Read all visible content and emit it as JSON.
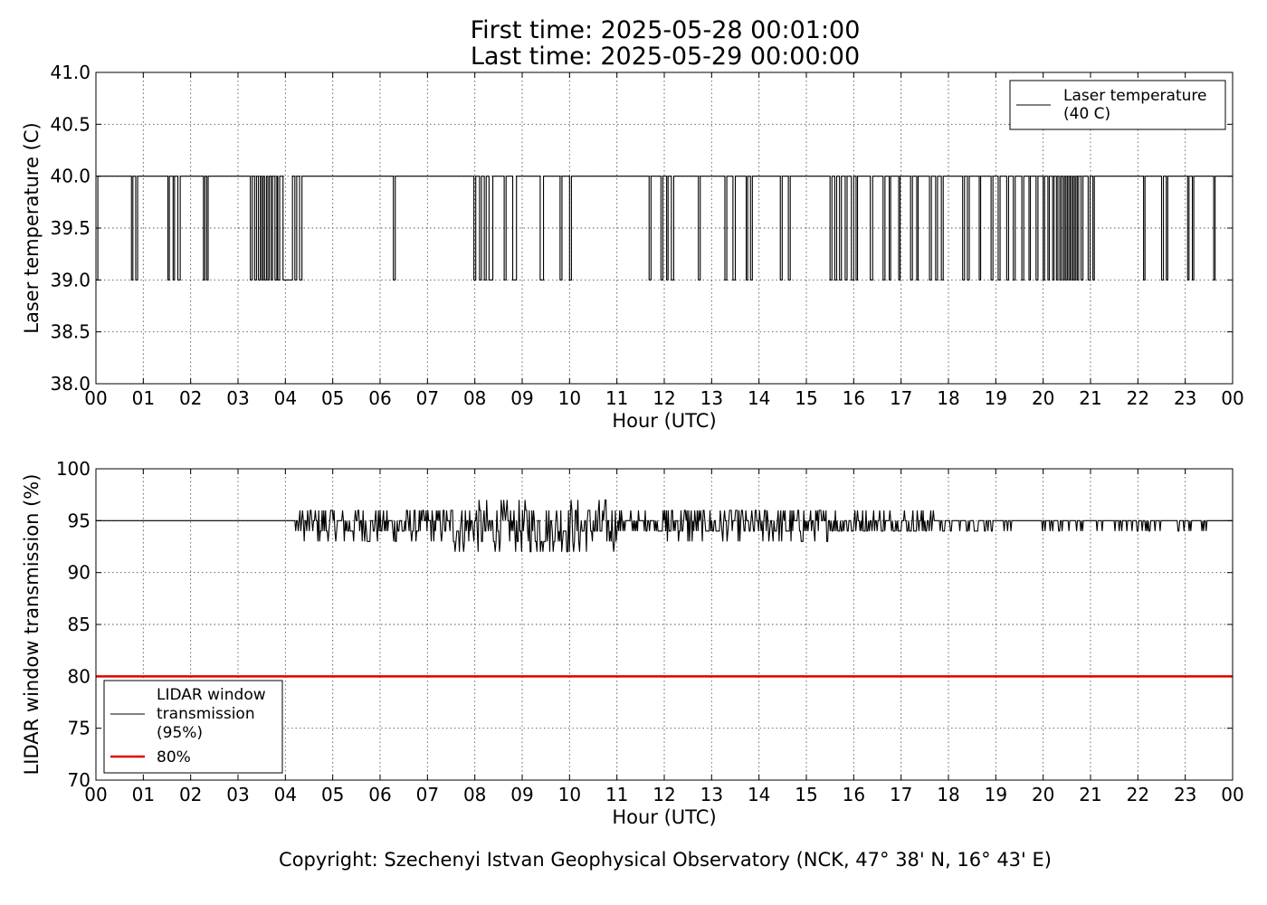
{
  "title": {
    "line1": "First time: 2025-05-28 00:01:00",
    "line2": "Last time: 2025-05-29 00:00:00"
  },
  "copyright": "Copyright: Szechenyi Istvan Geophysical Observatory (NCK, 47° 38' N, 16° 43' E)",
  "colors": {
    "series": "#000000",
    "threshold": "#e00000",
    "grid": "#555555"
  },
  "chart_data": [
    {
      "type": "line",
      "xlabel": "Hour (UTC)",
      "ylabel": "Laser temperature (C)",
      "xlim": [
        0,
        24
      ],
      "ylim": [
        38.0,
        41.0
      ],
      "xtick_labels": [
        "00",
        "01",
        "02",
        "03",
        "04",
        "05",
        "06",
        "07",
        "08",
        "09",
        "10",
        "11",
        "12",
        "13",
        "14",
        "15",
        "16",
        "17",
        "18",
        "19",
        "20",
        "21",
        "22",
        "23",
        "00"
      ],
      "ytick_labels": [
        "38.0",
        "38.5",
        "39.0",
        "39.5",
        "40.0",
        "40.5",
        "41.0"
      ],
      "grid": true,
      "legend_position": "top-right",
      "baseline": 40.0,
      "dip_value": 39.0,
      "dips_hours": [
        [
          0.0,
          0.04
        ],
        [
          0.75,
          0.78
        ],
        [
          0.84,
          0.88
        ],
        [
          1.52,
          1.55
        ],
        [
          1.63,
          1.66
        ],
        [
          1.73,
          1.78
        ],
        [
          2.27,
          2.3
        ],
        [
          2.34,
          2.37
        ],
        [
          3.26,
          3.3
        ],
        [
          3.35,
          3.39
        ],
        [
          3.43,
          3.47
        ],
        [
          3.5,
          3.53
        ],
        [
          3.56,
          3.6
        ],
        [
          3.63,
          3.66
        ],
        [
          3.7,
          3.73
        ],
        [
          3.78,
          3.82
        ],
        [
          3.84,
          3.88
        ],
        [
          3.95,
          4.15
        ],
        [
          4.2,
          4.24
        ],
        [
          4.3,
          4.35
        ],
        [
          6.28,
          6.32
        ],
        [
          7.98,
          8.02
        ],
        [
          8.1,
          8.14
        ],
        [
          8.2,
          8.24
        ],
        [
          8.3,
          8.38
        ],
        [
          8.62,
          8.66
        ],
        [
          8.8,
          8.88
        ],
        [
          9.38,
          9.45
        ],
        [
          9.8,
          9.84
        ],
        [
          10.0,
          10.04
        ],
        [
          11.68,
          11.72
        ],
        [
          11.93,
          11.97
        ],
        [
          12.05,
          12.08
        ],
        [
          12.15,
          12.2
        ],
        [
          12.72,
          12.76
        ],
        [
          13.28,
          13.32
        ],
        [
          13.45,
          13.5
        ],
        [
          13.73,
          13.76
        ],
        [
          13.82,
          13.86
        ],
        [
          14.45,
          14.49
        ],
        [
          14.62,
          14.66
        ],
        [
          15.5,
          15.54
        ],
        [
          15.6,
          15.64
        ],
        [
          15.7,
          15.74
        ],
        [
          15.82,
          15.86
        ],
        [
          15.95,
          16.0
        ],
        [
          16.05,
          16.08
        ],
        [
          16.35,
          16.4
        ],
        [
          16.62,
          16.66
        ],
        [
          16.75,
          16.78
        ],
        [
          16.95,
          16.98
        ],
        [
          17.2,
          17.24
        ],
        [
          17.33,
          17.36
        ],
        [
          17.6,
          17.64
        ],
        [
          17.73,
          17.77
        ],
        [
          17.85,
          17.89
        ],
        [
          18.3,
          18.34
        ],
        [
          18.4,
          18.44
        ],
        [
          18.65,
          18.68
        ],
        [
          18.9,
          18.94
        ],
        [
          19.05,
          19.09
        ],
        [
          19.23,
          19.27
        ],
        [
          19.37,
          19.41
        ],
        [
          19.55,
          19.59
        ],
        [
          19.7,
          19.73
        ],
        [
          19.85,
          19.89
        ],
        [
          20.0,
          20.03
        ],
        [
          20.1,
          20.13
        ],
        [
          20.2,
          20.23
        ],
        [
          20.28,
          20.31
        ],
        [
          20.35,
          20.38
        ],
        [
          20.42,
          20.45
        ],
        [
          20.48,
          20.51
        ],
        [
          20.54,
          20.57
        ],
        [
          20.6,
          20.63
        ],
        [
          20.66,
          20.69
        ],
        [
          20.72,
          20.75
        ],
        [
          20.8,
          20.84
        ],
        [
          20.95,
          20.99
        ],
        [
          21.05,
          21.08
        ],
        [
          22.12,
          22.15
        ],
        [
          22.5,
          22.54
        ],
        [
          22.6,
          22.63
        ],
        [
          23.05,
          23.08
        ],
        [
          23.15,
          23.18
        ],
        [
          23.6,
          23.63
        ]
      ],
      "series": [
        {
          "name": "Laser temperature\n(40 C)",
          "color": "#000000"
        }
      ]
    },
    {
      "type": "line",
      "xlabel": "Hour (UTC)",
      "ylabel": "LIDAR window transmission (%)",
      "xlim": [
        0,
        24
      ],
      "ylim": [
        70,
        100
      ],
      "xtick_labels": [
        "00",
        "01",
        "02",
        "03",
        "04",
        "05",
        "06",
        "07",
        "08",
        "09",
        "10",
        "11",
        "12",
        "13",
        "14",
        "15",
        "16",
        "17",
        "18",
        "19",
        "20",
        "21",
        "22",
        "23",
        "00"
      ],
      "ytick_labels": [
        "70",
        "75",
        "80",
        "85",
        "90",
        "95",
        "100"
      ],
      "grid": true,
      "legend_position": "lower-left",
      "threshold": 80,
      "baseline": 95,
      "activity_start_hour": 2.85,
      "activity_end_hour": 23.5,
      "series": [
        {
          "name": "LIDAR window\ntransmission\n(95%)",
          "color": "#000000"
        },
        {
          "name": "80%",
          "color": "#e00000"
        }
      ]
    }
  ]
}
